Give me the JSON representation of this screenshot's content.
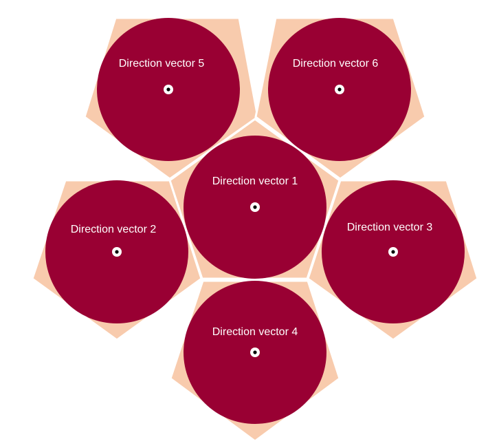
{
  "colors": {
    "background": "#ffffff",
    "pentagon_fill": "#f8cbad",
    "circle_fill": "#990033",
    "label_text": "#ffffff",
    "marker_outer": "#ffffff",
    "marker_inner": "#000000"
  },
  "nodes": [
    {
      "id": "dv1",
      "label": "Direction vector 1"
    },
    {
      "id": "dv2",
      "label": "Direction vector 2"
    },
    {
      "id": "dv3",
      "label": "Direction vector 3"
    },
    {
      "id": "dv4",
      "label": "Direction vector 4"
    },
    {
      "id": "dv5",
      "label": "Direction vector 5"
    },
    {
      "id": "dv6",
      "label": "Direction vector 6"
    }
  ]
}
